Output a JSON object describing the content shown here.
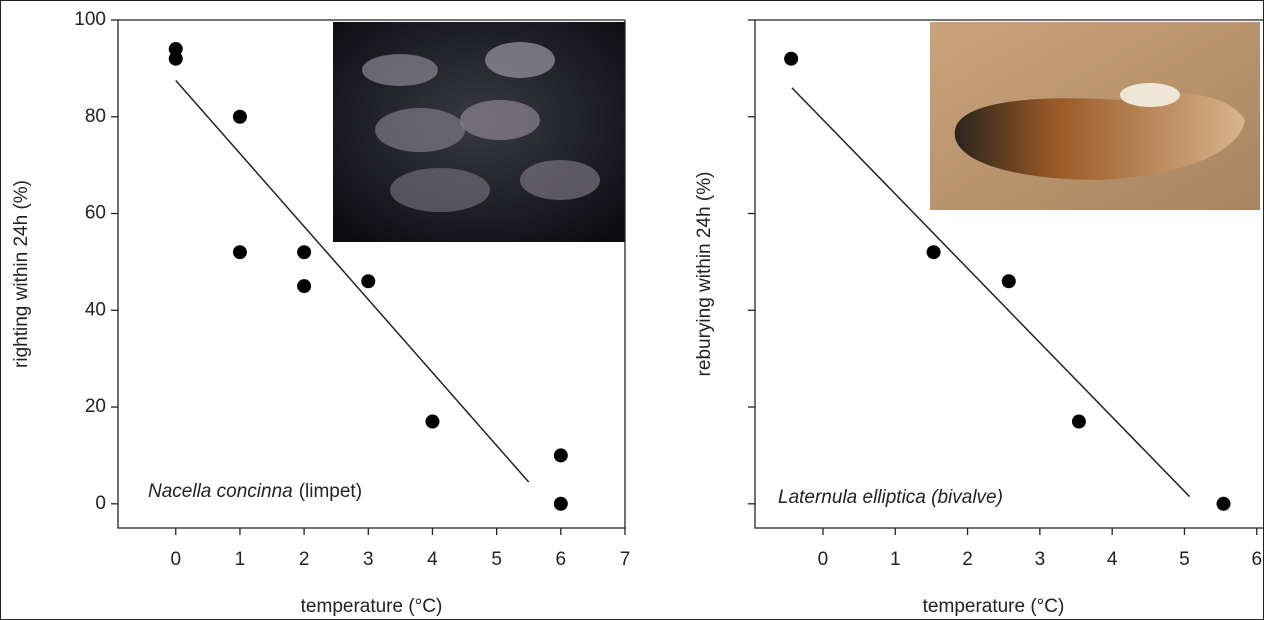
{
  "chart_data": [
    {
      "type": "scatter",
      "x": [
        0,
        0,
        1,
        1,
        2,
        2,
        3,
        4,
        6,
        6
      ],
      "values": [
        94,
        92,
        80,
        52,
        52,
        45,
        46,
        17,
        10,
        0
      ],
      "color": "#000000",
      "fit_line": {
        "x": [
          0,
          5.5
        ],
        "y": [
          87.5,
          4.5
        ]
      },
      "xlim": [
        -0.9,
        7
      ],
      "ylim": [
        -5,
        100
      ],
      "xticks": [
        0,
        1,
        2,
        3,
        4,
        5,
        6,
        7
      ],
      "yticks": [
        0,
        20,
        40,
        60,
        80,
        100
      ],
      "ytick_labels": true,
      "x_label": "temperature (°C)",
      "y_label": "righting within 24h (%)",
      "annotation": [
        "Nacella concinna",
        "(limpet)"
      ]
    },
    {
      "type": "scatter",
      "x": [
        -0.44,
        1.53,
        2.57,
        3.54,
        5.54
      ],
      "values": [
        92,
        52,
        46,
        17,
        0
      ],
      "color": "#000000",
      "fit_line": {
        "x": [
          -0.43,
          5.07
        ],
        "y": [
          86,
          1.5
        ]
      },
      "xlim": [
        -0.94,
        6.1
      ],
      "ylim": [
        -5,
        100
      ],
      "xticks": [
        0,
        1,
        2,
        3,
        4,
        5,
        6
      ],
      "yticks": [
        0,
        20,
        40,
        60,
        80,
        100
      ],
      "ytick_labels": false,
      "x_label": "temperature (°C)",
      "y_label": "reburying within 24h (%)",
      "annotation": [
        "Laternula elliptica (bivalve)"
      ]
    }
  ]
}
